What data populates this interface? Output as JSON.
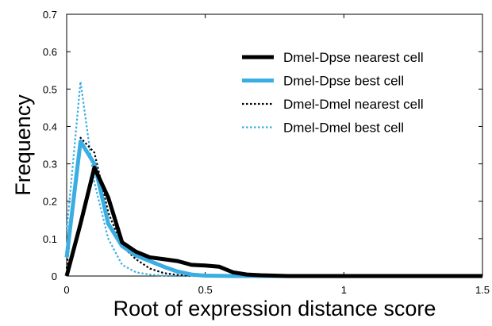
{
  "chart_data": {
    "type": "line",
    "title": "",
    "xlabel": "Root of expression distance score",
    "ylabel": "Frequency",
    "xlim": [
      0,
      1.5
    ],
    "ylim": [
      0,
      0.7
    ],
    "xticks": [
      0,
      0.5,
      1,
      1.5
    ],
    "yticks": [
      0,
      0.1,
      0.2,
      0.3,
      0.4,
      0.5,
      0.6,
      0.7
    ],
    "grid": false,
    "legend_position": "top-right",
    "series": [
      {
        "name": "Dmel-Dpse nearest cell",
        "color": "#000000",
        "style": "solid",
        "x": [
          0,
          0.05,
          0.1,
          0.15,
          0.2,
          0.25,
          0.3,
          0.35,
          0.4,
          0.45,
          0.5,
          0.55,
          0.6,
          0.65,
          0.7,
          0.75,
          0.8,
          0.85,
          0.9,
          1.0,
          1.5
        ],
        "y": [
          0,
          0.14,
          0.29,
          0.21,
          0.09,
          0.065,
          0.05,
          0.045,
          0.04,
          0.03,
          0.028,
          0.025,
          0.01,
          0.004,
          0.002,
          0.001,
          0.0,
          0.0,
          0.0,
          0.0,
          0.0
        ]
      },
      {
        "name": "Dmel-Dpse best cell",
        "color": "#3aaee2",
        "style": "solid",
        "x": [
          0,
          0.05,
          0.1,
          0.15,
          0.2,
          0.25,
          0.3,
          0.35,
          0.4,
          0.45,
          0.5,
          0.6,
          0.7,
          0.8,
          1.0,
          1.5
        ],
        "y": [
          0.05,
          0.36,
          0.3,
          0.14,
          0.08,
          0.055,
          0.04,
          0.025,
          0.012,
          0.004,
          0.001,
          0.0,
          0.0,
          0.0,
          0.0,
          0.0
        ]
      },
      {
        "name": "Dmel-Dmel nearest cell",
        "color": "#000000",
        "style": "dotted",
        "x": [
          0,
          0.05,
          0.1,
          0.15,
          0.2,
          0.25,
          0.3,
          0.35,
          0.4,
          0.45,
          0.5,
          0.6,
          0.8,
          1.0,
          1.5
        ],
        "y": [
          0.02,
          0.37,
          0.33,
          0.17,
          0.08,
          0.045,
          0.02,
          0.008,
          0.003,
          0.001,
          0.0,
          0.0,
          0.0,
          0.0,
          0.0
        ]
      },
      {
        "name": "Dmel-Dmel best cell",
        "color": "#3aaee2",
        "style": "dotted",
        "x": [
          0,
          0.05,
          0.1,
          0.15,
          0.2,
          0.25,
          0.3,
          0.35,
          0.4,
          0.5,
          0.6,
          0.8,
          1.0,
          1.5
        ],
        "y": [
          0.12,
          0.52,
          0.25,
          0.1,
          0.03,
          0.01,
          0.004,
          0.001,
          0.0,
          0.0,
          0.0,
          0.0,
          0.0,
          0.0
        ]
      }
    ]
  }
}
